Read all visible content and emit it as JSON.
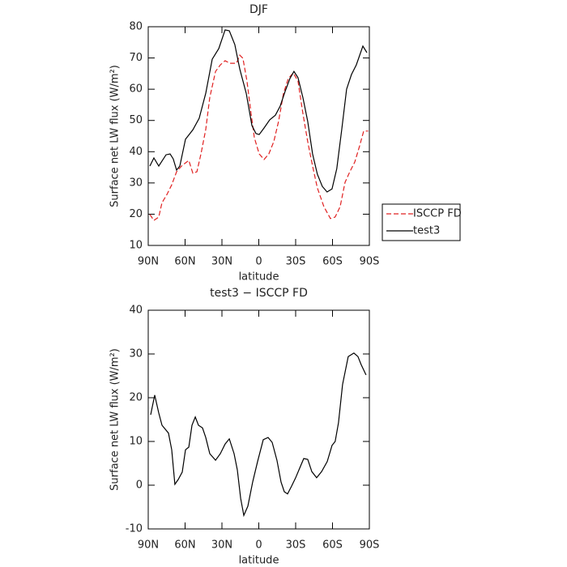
{
  "chart_data": [
    {
      "type": "line",
      "title": "DJF",
      "xlabel": "latitude",
      "ylabel": "Surface net LW flux (W/m²)",
      "xlim": [
        90,
        -90
      ],
      "xticks": [
        {
          "value": 90,
          "label": "90N"
        },
        {
          "value": 60,
          "label": "60N"
        },
        {
          "value": 30,
          "label": "30N"
        },
        0,
        {
          "value": -30,
          "label": "30S"
        },
        {
          "value": -60,
          "label": "60S"
        },
        {
          "value": -90,
          "label": "90S"
        }
      ],
      "ylim": [
        10,
        80
      ],
      "yticks": [
        10,
        20,
        30,
        40,
        50,
        60,
        70,
        80
      ],
      "legend": "outside right",
      "series": [
        {
          "name": "ISCCP FD",
          "color": "#e02020",
          "dash": true,
          "x": [
            88.7,
            85.4,
            81.4,
            78.8,
            74.8,
            70.9,
            66.9,
            62.9,
            60.3,
            57,
            53.7,
            50.4,
            47.1,
            43.2,
            39.9,
            35.2,
            31.3,
            27.4,
            23.4,
            18.1,
            15.5,
            12.9,
            9.6,
            6.3,
            3.6,
            -0.3,
            -4.3,
            -8.2,
            -12.2,
            -16.1,
            -20.1,
            -24,
            -28,
            -31.9,
            -35.9,
            -39.8,
            -43.8,
            -47.7,
            -53,
            -58.3,
            -62.2,
            -66.2,
            -70.2,
            -74.1,
            -78.1,
            -82.1,
            -85.4,
            -89
          ],
          "values": [
            19.9,
            18,
            19.1,
            23.7,
            26.3,
            29.4,
            33.6,
            35.4,
            36.2,
            37.2,
            33.1,
            33.6,
            39.3,
            47.1,
            57.4,
            65.7,
            67.8,
            69.1,
            68.3,
            68.3,
            70.9,
            69.9,
            62.6,
            52.3,
            44.5,
            39.3,
            37.5,
            39.3,
            43.2,
            49.7,
            58.7,
            63.4,
            65.2,
            62.6,
            52.3,
            43.2,
            35.4,
            28.4,
            22.4,
            18.6,
            19.1,
            22.4,
            30.2,
            33.6,
            36.7,
            41.9,
            46.6,
            46.6
          ]
        },
        {
          "name": "test3",
          "color": "#000000",
          "dash": false,
          "x": [
            88.7,
            85.4,
            81.4,
            75.5,
            72.2,
            69.6,
            66.9,
            64.3,
            59.7,
            53.7,
            48.5,
            43.2,
            37.9,
            32.6,
            27.4,
            24,
            19.5,
            15.5,
            10.2,
            5.6,
            2.3,
            -0.3,
            -4.3,
            -8.9,
            -13.5,
            -17.4,
            -21.4,
            -25.3,
            -28.6,
            -31.9,
            -35.9,
            -39.8,
            -43.8,
            -47.7,
            -51.7,
            -55.6,
            -59.6,
            -63.5,
            -67.5,
            -71.5,
            -75.4,
            -79.4,
            -84.7,
            -88
          ],
          "values": [
            35.4,
            38,
            35.4,
            39,
            39.3,
            37.7,
            34.1,
            35.4,
            44,
            47,
            50.7,
            58.7,
            69.6,
            73,
            79,
            78.7,
            74.3,
            66.5,
            58.7,
            48.4,
            45.8,
            45.5,
            47.6,
            50.2,
            51.7,
            54.6,
            59.3,
            63.4,
            65.7,
            63.7,
            57.4,
            49.7,
            39.3,
            32.8,
            28.9,
            27.1,
            28.1,
            34.6,
            47.1,
            60,
            64.7,
            67.8,
            73.8,
            71.7
          ]
        }
      ]
    },
    {
      "type": "line",
      "title": "test3 − ISCCP FD",
      "xlabel": "latitude",
      "ylabel": "Surface net LW flux (W/m²)",
      "xlim": [
        90,
        -90
      ],
      "xticks": [
        {
          "value": 90,
          "label": "90N"
        },
        {
          "value": 60,
          "label": "60N"
        },
        {
          "value": 30,
          "label": "30N"
        },
        0,
        {
          "value": -30,
          "label": "30S"
        },
        {
          "value": -60,
          "label": "60S"
        },
        {
          "value": -90,
          "label": "90S"
        }
      ],
      "ylim": [
        -10,
        40
      ],
      "yticks": [
        -10,
        0,
        10,
        20,
        30,
        40
      ],
      "color": "#000000",
      "x": [
        88,
        84.7,
        81.4,
        78.8,
        73.5,
        70.9,
        68.3,
        65.6,
        62.3,
        59.7,
        57,
        54.4,
        51.7,
        49.1,
        45.8,
        43.2,
        39.9,
        35.2,
        31.3,
        27.4,
        24,
        20.1,
        17.5,
        14.8,
        12.2,
        8.9,
        5,
        1,
        -3.6,
        -7.6,
        -10.9,
        -14.8,
        -18.1,
        -20.8,
        -23.4,
        -26.7,
        -30,
        -33.3,
        -36.6,
        -39.8,
        -43.2,
        -47.1,
        -51.1,
        -55.7,
        -59.6,
        -62.2,
        -64.9,
        -68.2,
        -72.8,
        -77.4,
        -80.7,
        -83.3,
        -87.3
      ],
      "values": [
        16.1,
        20.6,
        16.5,
        13.7,
        11.9,
        8.1,
        0.2,
        1.3,
        3,
        8.1,
        8.7,
        13.7,
        15.6,
        13.7,
        13.1,
        10.9,
        7.2,
        5.7,
        7.2,
        9.4,
        10.6,
        7.2,
        3.5,
        -3,
        -6.9,
        -4.8,
        0.7,
        5.4,
        10.4,
        10.9,
        9.8,
        5.7,
        0.7,
        -1.5,
        -2,
        -0.2,
        1.7,
        3.9,
        6.1,
        5.9,
        3.1,
        1.7,
        3.1,
        5.4,
        9.1,
        10,
        14.3,
        23,
        29.4,
        30.2,
        29.4,
        27.6,
        25.2
      ]
    }
  ]
}
